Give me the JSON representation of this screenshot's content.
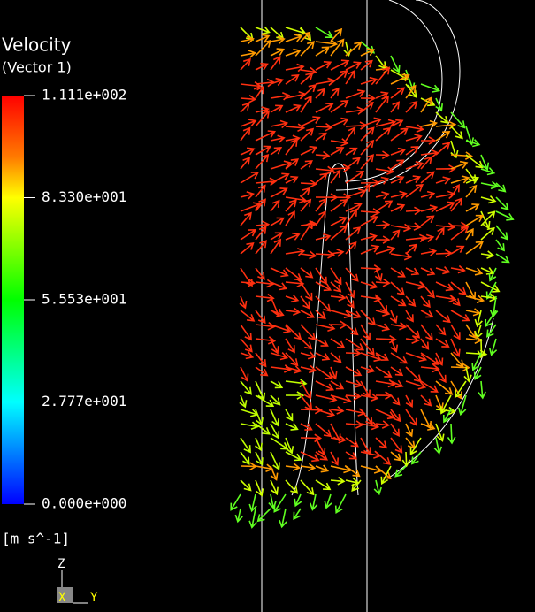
{
  "legend": {
    "title": "Velocity",
    "subtitle": "(Vector 1)",
    "ticks": [
      "1.111e+002",
      "8.330e+001",
      "5.553e+001",
      "2.777e+001",
      "0.000e+000"
    ],
    "unit": "[m s^-1]"
  },
  "axes": {
    "z": "Z",
    "x": "X",
    "y": "Y"
  }
}
